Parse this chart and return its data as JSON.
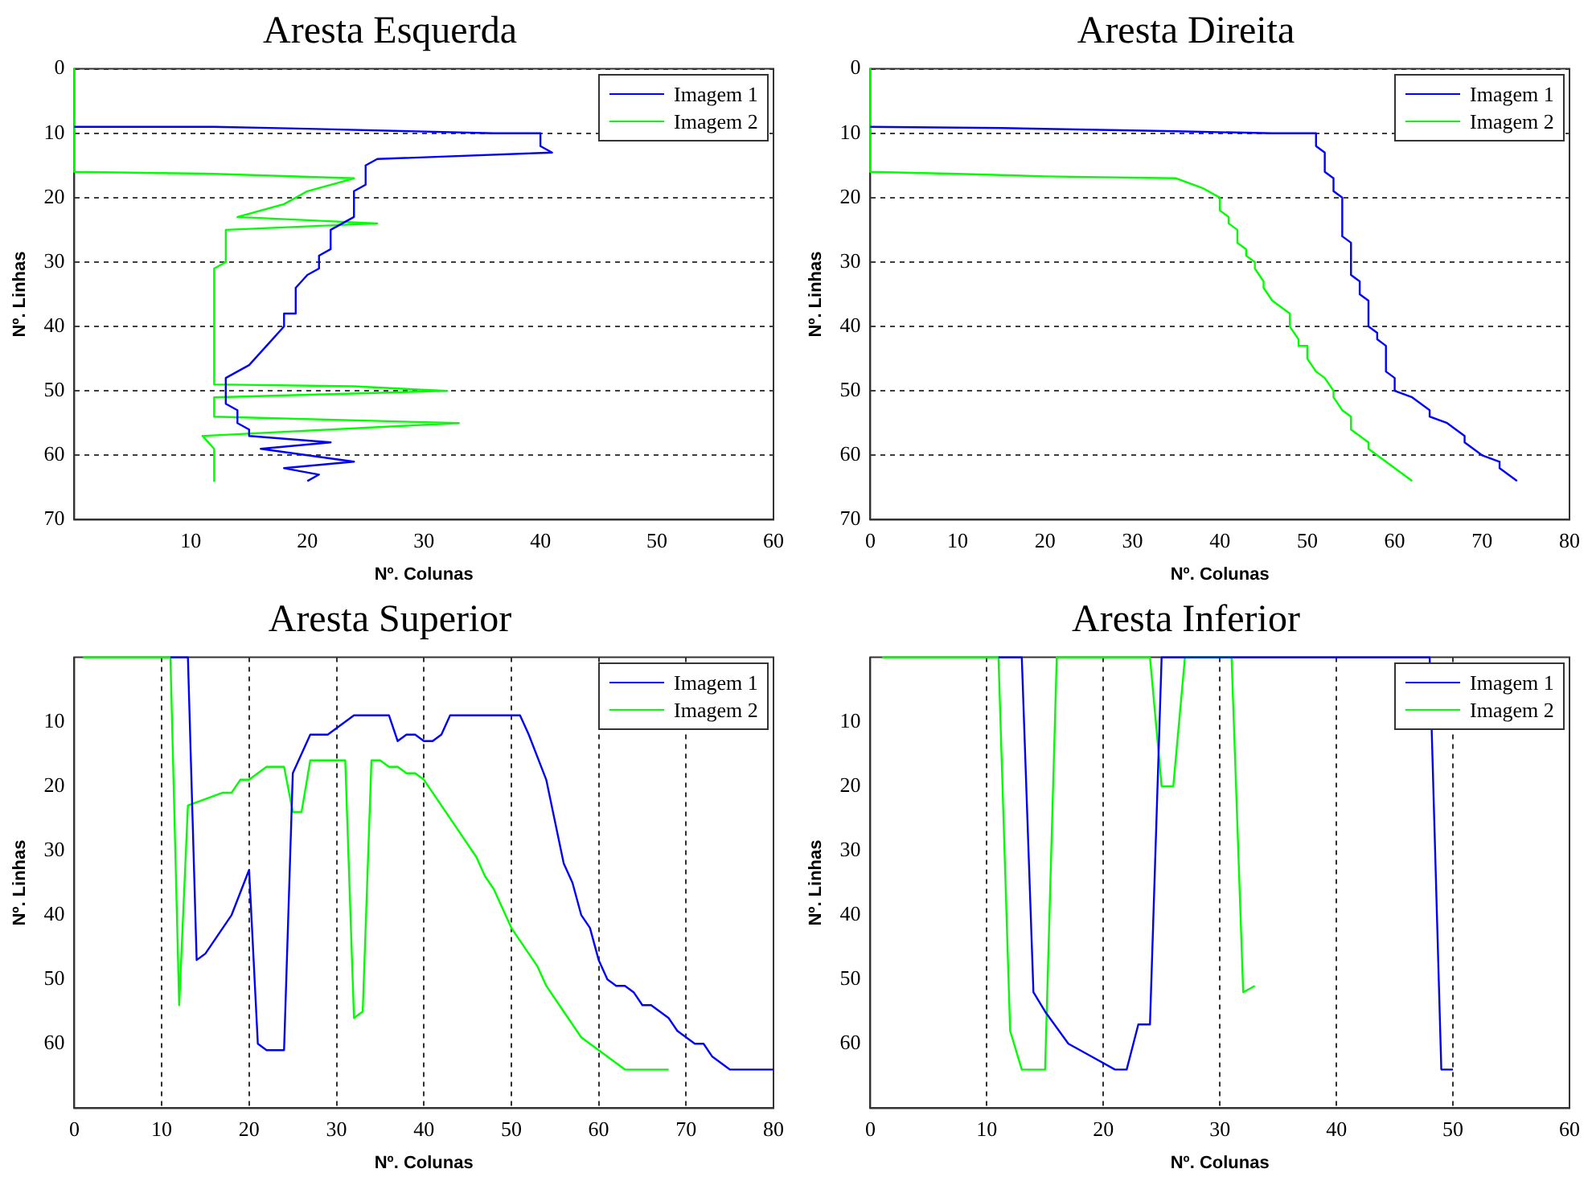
{
  "chart_data": [
    {
      "type": "line",
      "title": "Aresta Esquerda",
      "xlabel": "Nº. Colunas",
      "ylabel": "Nº. Linhas",
      "xlim": [
        0,
        60
      ],
      "xticks": [
        10,
        20,
        30,
        40,
        50,
        60
      ],
      "ylim": [
        70,
        0
      ],
      "yticks": [
        0,
        10,
        20,
        30,
        40,
        50,
        60,
        70
      ],
      "grid": "y",
      "legend": "top right",
      "marker": "none",
      "line_style": "solid",
      "series": [
        {
          "name": "Imagem 1",
          "color": "#0000ff",
          "x": [
            0,
            12,
            20,
            36,
            40,
            40,
            41,
            26,
            25,
            25,
            24,
            24,
            23,
            22,
            22,
            21,
            21,
            20,
            19,
            19,
            18,
            18,
            17,
            16,
            15,
            13,
            13,
            14,
            14,
            15,
            15,
            22,
            16,
            24,
            18,
            21,
            20
          ],
          "values": [
            9,
            9,
            9.3,
            10,
            10,
            12,
            13,
            14,
            15,
            18,
            19,
            23,
            24,
            25,
            28,
            29,
            31,
            32,
            34,
            38,
            38,
            40,
            42,
            44,
            46,
            48,
            52,
            53,
            55,
            56,
            57,
            58,
            59,
            61,
            62,
            63,
            64
          ]
        },
        {
          "name": "Imagem 2",
          "color": "#00ff00",
          "x": [
            0,
            0,
            12,
            24,
            20,
            18,
            14,
            26,
            13,
            13,
            12,
            12,
            24,
            32,
            12,
            12,
            33,
            11,
            12,
            12
          ],
          "values": [
            0,
            16,
            16.3,
            17,
            19,
            21,
            23,
            24,
            25,
            30,
            31,
            49,
            49.3,
            50,
            51,
            54,
            55,
            57,
            59,
            64
          ]
        }
      ]
    },
    {
      "type": "line",
      "title": "Aresta Direita",
      "xlabel": "Nº. Colunas",
      "ylabel": "Nº. Linhas",
      "xlim": [
        0,
        80
      ],
      "xticks": [
        0,
        10,
        20,
        30,
        40,
        50,
        60,
        70,
        80
      ],
      "ylim": [
        70,
        0
      ],
      "yticks": [
        0,
        10,
        20,
        30,
        40,
        50,
        60,
        70
      ],
      "grid": "y",
      "legend": "top right",
      "marker": "none",
      "line_style": "solid",
      "series": [
        {
          "name": "Imagem 1",
          "color": "#0000ff",
          "x": [
            0,
            15,
            35,
            46,
            51,
            51,
            52,
            52,
            53,
            53,
            54,
            54,
            55,
            55,
            56,
            56,
            57,
            57,
            58,
            58,
            59,
            59,
            60,
            60,
            62,
            64,
            64,
            66,
            68,
            68,
            69,
            70,
            72,
            72,
            74
          ],
          "values": [
            9,
            9.2,
            9.7,
            10,
            10,
            12,
            13,
            16,
            17,
            19,
            20,
            26,
            27,
            32,
            33,
            35,
            36,
            40,
            41,
            42,
            43,
            47,
            48,
            50,
            51,
            53,
            54,
            55,
            57,
            58,
            59,
            60,
            61,
            62,
            64
          ]
        },
        {
          "name": "Imagem 2",
          "color": "#00ff00",
          "x": [
            0,
            0,
            10,
            20,
            35,
            38,
            40,
            40,
            41,
            41,
            42,
            42,
            43,
            43,
            44,
            44,
            45,
            45,
            46,
            48,
            48,
            49,
            49,
            50,
            50,
            51,
            52,
            53,
            53,
            54,
            55,
            55,
            56,
            57,
            57,
            62
          ],
          "values": [
            0,
            16,
            16.3,
            16.7,
            17,
            18.5,
            20,
            22,
            23,
            24,
            25,
            27,
            28,
            29,
            30,
            31,
            33,
            34,
            36,
            38,
            40,
            42,
            43,
            43,
            45,
            47,
            48,
            50,
            51,
            53,
            54,
            56,
            57,
            58,
            59,
            64
          ]
        }
      ]
    },
    {
      "type": "line",
      "title": "Aresta Superior",
      "xlabel": "Nº. Colunas",
      "ylabel": "Nº. Linhas",
      "xlim": [
        0,
        80
      ],
      "xticks": [
        0,
        10,
        20,
        30,
        40,
        50,
        60,
        70,
        80
      ],
      "ylim": [
        70,
        0
      ],
      "yticks": [
        10,
        20,
        30,
        40,
        50,
        60
      ],
      "grid": "x",
      "legend": "top right",
      "marker": "none",
      "line_style": "solid",
      "series": [
        {
          "name": "Imagem 1",
          "color": "#0000ff",
          "x": [
            11,
            13,
            14,
            15,
            18,
            20,
            21,
            22,
            24,
            25,
            26,
            27,
            29,
            30,
            32,
            36,
            37,
            38,
            39,
            40,
            41,
            42,
            43,
            51,
            52,
            54,
            56,
            57,
            58,
            59,
            60,
            61,
            62,
            63,
            64,
            65,
            66,
            68,
            69,
            70,
            71,
            72,
            73,
            75,
            80
          ],
          "values": [
            0,
            0,
            47,
            46,
            40,
            33,
            60,
            61,
            61,
            18,
            15,
            12,
            12,
            11,
            9,
            9,
            13,
            12,
            12,
            13,
            13,
            12,
            9,
            9,
            12,
            19,
            32,
            35,
            40,
            42,
            47,
            50,
            51,
            51,
            52,
            54,
            54,
            56,
            58,
            59,
            60,
            60,
            62,
            64,
            64
          ]
        },
        {
          "name": "Imagem 2",
          "color": "#00ff00",
          "x": [
            1,
            11,
            12,
            13,
            15,
            17,
            18,
            19,
            20,
            22,
            24,
            25,
            26,
            27,
            31,
            32,
            33,
            34,
            35,
            36,
            37,
            38,
            39,
            40,
            42,
            44,
            46,
            47,
            48,
            50,
            52,
            53,
            54,
            56,
            58,
            60,
            62,
            63,
            68
          ],
          "values": [
            0,
            0,
            54,
            23,
            22,
            21,
            21,
            19,
            19,
            17,
            17,
            24,
            24,
            16,
            16,
            56,
            55,
            16,
            16,
            17,
            17,
            18,
            18,
            19,
            23,
            27,
            31,
            34,
            36,
            42,
            46,
            48,
            51,
            55,
            59,
            61,
            63,
            64,
            64
          ]
        }
      ]
    },
    {
      "type": "line",
      "title": "Aresta Inferior",
      "xlabel": "Nº. Colunas",
      "ylabel": "Nº. Linhas",
      "xlim": [
        0,
        60
      ],
      "xticks": [
        0,
        10,
        20,
        30,
        40,
        50,
        60
      ],
      "ylim": [
        70,
        0
      ],
      "yticks": [
        10,
        20,
        30,
        40,
        50,
        60
      ],
      "grid": "x",
      "legend": "top right",
      "marker": "none",
      "line_style": "solid",
      "series": [
        {
          "name": "Imagem 1",
          "color": "#0000ff",
          "x": [
            11,
            13,
            14,
            15,
            17,
            19,
            21,
            22,
            23,
            24,
            25,
            48,
            49,
            50
          ],
          "values": [
            0,
            0,
            52,
            55,
            60,
            62,
            64,
            64,
            57,
            57,
            0,
            0,
            64,
            64
          ]
        },
        {
          "name": "Imagem 2",
          "color": "#00ff00",
          "x": [
            1,
            11,
            12,
            13,
            15,
            16,
            24,
            25,
            26,
            27,
            31,
            32,
            33
          ],
          "values": [
            0,
            0,
            58,
            64,
            64,
            0,
            0,
            20,
            20,
            0,
            0,
            52,
            51
          ]
        }
      ]
    }
  ]
}
